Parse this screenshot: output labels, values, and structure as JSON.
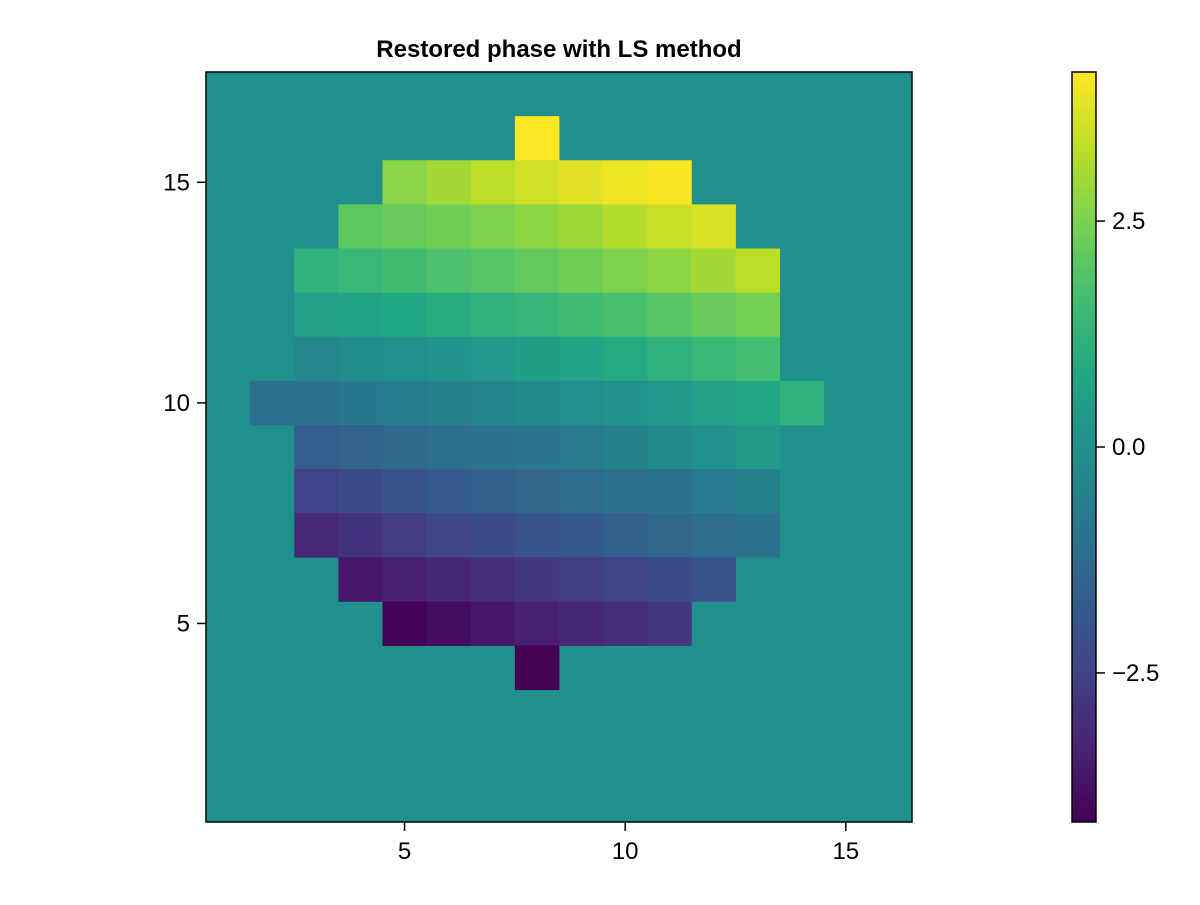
{
  "chart_data": {
    "type": "heatmap",
    "title": "Restored phase with LS method",
    "xlabel": "",
    "ylabel": "",
    "x_range": [
      0.5,
      16.5
    ],
    "y_range": [
      0.5,
      17.5
    ],
    "x_ticks": [
      5,
      10,
      15
    ],
    "x_tick_labels": [
      "5",
      "10",
      "15"
    ],
    "y_ticks": [
      5,
      10,
      15
    ],
    "y_tick_labels": [
      "5",
      "10",
      "15"
    ],
    "grid": false,
    "colormap": "viridis",
    "background_value": 0.0,
    "color_range": [
      -4.15,
      4.15
    ],
    "colorbar": {
      "position": "right",
      "ticks": [
        -2.5,
        0.0,
        2.5
      ],
      "tick_labels": [
        "−2.5",
        "0.0",
        "2.5"
      ]
    },
    "cells": [
      {
        "y": 16,
        "x": [
          8
        ],
        "values": [
          4.15
        ]
      },
      {
        "y": 15,
        "x": [
          5,
          6,
          7,
          8,
          9,
          10,
          11
        ],
        "values": [
          2.7,
          3.0,
          3.3,
          3.55,
          3.8,
          3.95,
          4.1
        ]
      },
      {
        "y": 14,
        "x": [
          4,
          5,
          6,
          7,
          8,
          9,
          10,
          11,
          12
        ],
        "values": [
          2.05,
          2.2,
          2.35,
          2.55,
          2.75,
          2.95,
          3.2,
          3.45,
          3.7
        ]
      },
      {
        "y": 13,
        "x": [
          3,
          4,
          5,
          6,
          7,
          8,
          9,
          10,
          11,
          12,
          13
        ],
        "values": [
          1.2,
          1.4,
          1.6,
          1.8,
          1.95,
          2.15,
          2.35,
          2.55,
          2.75,
          3.0,
          3.3
        ]
      },
      {
        "y": 12,
        "x": [
          3,
          4,
          5,
          6,
          7,
          8,
          9,
          10,
          11,
          12,
          13
        ],
        "values": [
          0.55,
          0.7,
          0.85,
          1.0,
          1.15,
          1.35,
          1.55,
          1.75,
          1.95,
          2.2,
          2.45
        ]
      },
      {
        "y": 11,
        "x": [
          3,
          4,
          5,
          6,
          7,
          8,
          9,
          10,
          11,
          12,
          13
        ],
        "values": [
          -0.3,
          -0.15,
          0.0,
          0.15,
          0.3,
          0.5,
          0.7,
          0.9,
          1.15,
          1.4,
          1.65
        ]
      },
      {
        "y": 10,
        "x": [
          2,
          3,
          4,
          5,
          6,
          7,
          8,
          9,
          10,
          11,
          12,
          13,
          14
        ],
        "values": [
          -1.1,
          -0.95,
          -0.8,
          -0.65,
          -0.5,
          -0.35,
          -0.2,
          -0.05,
          0.1,
          0.3,
          0.55,
          0.8,
          1.2
        ]
      },
      {
        "y": 9,
        "x": [
          3,
          4,
          5,
          6,
          7,
          8,
          9,
          10,
          11,
          12,
          13
        ],
        "values": [
          -1.7,
          -1.5,
          -1.3,
          -1.15,
          -1.0,
          -0.85,
          -0.7,
          -0.5,
          -0.25,
          0.05,
          0.35
        ]
      },
      {
        "y": 8,
        "x": [
          3,
          4,
          5,
          6,
          7,
          8,
          9,
          10,
          11,
          12,
          13
        ],
        "values": [
          -2.5,
          -2.2,
          -1.95,
          -1.75,
          -1.55,
          -1.4,
          -1.25,
          -1.1,
          -0.95,
          -0.75,
          -0.5
        ]
      },
      {
        "y": 7,
        "x": [
          3,
          4,
          5,
          6,
          7,
          8,
          9,
          10,
          11,
          12,
          13
        ],
        "values": [
          -3.15,
          -2.9,
          -2.65,
          -2.4,
          -2.2,
          -2.0,
          -1.8,
          -1.6,
          -1.4,
          -1.2,
          -1.0
        ]
      },
      {
        "y": 6,
        "x": [
          4,
          5,
          6,
          7,
          8,
          9,
          10,
          11,
          12
        ],
        "values": [
          -3.6,
          -3.4,
          -3.2,
          -3.0,
          -2.8,
          -2.6,
          -2.4,
          -2.2,
          -2.0
        ]
      },
      {
        "y": 5,
        "x": [
          5,
          6,
          7,
          8,
          9,
          10,
          11
        ],
        "values": [
          -4.1,
          -3.85,
          -3.6,
          -3.4,
          -3.2,
          -3.0,
          -2.8
        ]
      },
      {
        "y": 4,
        "x": [
          8
        ],
        "values": [
          -4.15
        ]
      }
    ]
  }
}
